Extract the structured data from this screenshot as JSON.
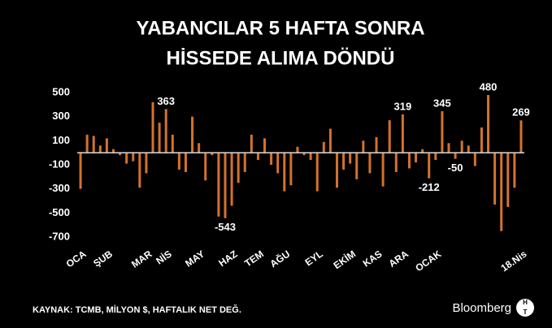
{
  "chart_data": {
    "type": "bar",
    "title": [
      "YABANCILAR 5 HAFTA SONRA",
      "HİSSEDE ALIMA DÖNDÜ"
    ],
    "categories": [
      "OCA",
      null,
      null,
      null,
      "ŞUB",
      null,
      null,
      null,
      null,
      null,
      "MAR",
      null,
      null,
      "NİS",
      null,
      null,
      null,
      null,
      "MAY",
      null,
      null,
      null,
      null,
      "HAZ",
      null,
      null,
      null,
      "TEM",
      null,
      null,
      null,
      "AĞU",
      null,
      null,
      null,
      null,
      "EYL",
      null,
      null,
      null,
      null,
      "EKİM",
      null,
      null,
      null,
      "KAS",
      null,
      null,
      null,
      "ARA",
      null,
      null,
      null,
      null,
      "OCAK",
      null,
      null,
      null,
      null,
      null,
      null,
      null,
      null,
      null,
      null,
      null,
      null,
      "18.Nis"
    ],
    "values": [
      -300,
      150,
      140,
      60,
      120,
      30,
      -20,
      -90,
      -70,
      -290,
      -170,
      420,
      250,
      363,
      150,
      -140,
      -160,
      300,
      80,
      -230,
      -20,
      -530,
      -543,
      -440,
      -250,
      -160,
      150,
      -60,
      120,
      -100,
      -170,
      -320,
      -270,
      50,
      -20,
      -60,
      -320,
      90,
      200,
      -290,
      -140,
      -90,
      -220,
      100,
      -170,
      130,
      -280,
      270,
      -160,
      319,
      -130,
      -80,
      30,
      -212,
      -60,
      345,
      80,
      -50,
      100,
      60,
      -110,
      210,
      480,
      -430,
      -650,
      -450,
      -290,
      269
    ],
    "value_labels": [
      null,
      null,
      null,
      null,
      null,
      null,
      null,
      null,
      null,
      null,
      null,
      null,
      null,
      "363",
      null,
      null,
      null,
      null,
      null,
      null,
      null,
      null,
      "-543",
      null,
      null,
      null,
      null,
      null,
      null,
      null,
      null,
      null,
      null,
      null,
      null,
      null,
      null,
      null,
      null,
      null,
      null,
      null,
      null,
      null,
      null,
      null,
      null,
      null,
      null,
      "319",
      null,
      null,
      null,
      "-212",
      null,
      "345",
      null,
      "-50",
      null,
      null,
      null,
      null,
      "480",
      null,
      null,
      null,
      null,
      "269"
    ],
    "color": "#d4722c",
    "ylim": [
      -700,
      500
    ],
    "yticks": [
      500,
      300,
      100,
      -100,
      -300,
      -500,
      -700
    ],
    "source": "KAYNAK: TCMB, MİLYON $, HAFTALIK NET DEĞ.",
    "brand": "Bloomberg",
    "logo": [
      "H",
      "T"
    ]
  }
}
